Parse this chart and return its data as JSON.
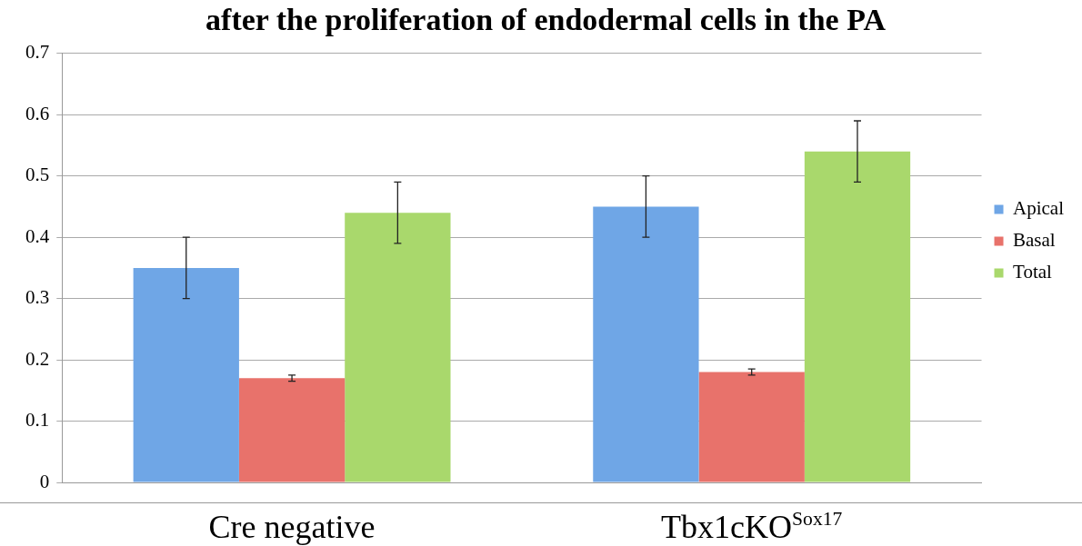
{
  "chart_data": {
    "type": "bar",
    "title": "after the proliferation of endodermal cells in the PA",
    "categories": [
      "Cre negative",
      "Tbx1cKO$^{Sox17}$"
    ],
    "series": [
      {
        "name": "Apical",
        "color": "#6fa6e6",
        "values": [
          0.35,
          0.45
        ],
        "errors": [
          0.05,
          0.05
        ]
      },
      {
        "name": "Basal",
        "color": "#e8726b",
        "values": [
          0.17,
          0.18
        ],
        "errors": [
          0.005,
          0.005
        ]
      },
      {
        "name": "Total",
        "color": "#a9d86c",
        "values": [
          0.44,
          0.54
        ],
        "errors": [
          0.05,
          0.05
        ]
      }
    ],
    "ylim": [
      0,
      0.7
    ],
    "yticks": [
      0,
      0.1,
      0.2,
      0.3,
      0.4,
      0.5,
      0.6,
      0.7
    ],
    "grid": "y",
    "legend": "right"
  }
}
